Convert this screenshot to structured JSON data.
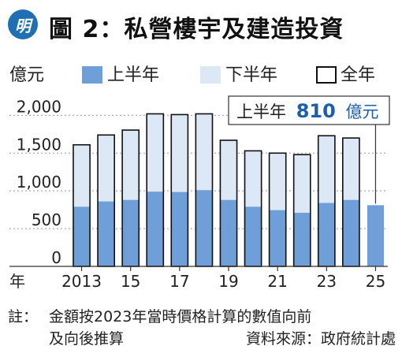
{
  "header": {
    "logo_text": "明",
    "title": "圖 2：私營樓宇及建造投資"
  },
  "colors": {
    "first_half": "#6f9fd8",
    "second_half": "#dde8f6",
    "bar_outline": "#111111",
    "axis": "#333333",
    "annotation_text": "#1a5fb0"
  },
  "chart_data": {
    "type": "bar",
    "stacked": true,
    "unit_label": "億元",
    "x_axis_label": "年",
    "categories": [
      "2013",
      "2014",
      "2015",
      "2016",
      "2017",
      "2018",
      "2019",
      "2020",
      "2021",
      "2022",
      "2023",
      "2024",
      "2025"
    ],
    "tick_labels": [
      {
        "category": "2013",
        "text": "2013"
      },
      {
        "category": "2015",
        "text": "15"
      },
      {
        "category": "2017",
        "text": "17"
      },
      {
        "category": "2019",
        "text": "19"
      },
      {
        "category": "2021",
        "text": "21"
      },
      {
        "category": "2023",
        "text": "23"
      },
      {
        "category": "2025",
        "text": "25"
      }
    ],
    "y_ticks": [
      "0",
      "500",
      "1,000",
      "1,500",
      "2,000"
    ],
    "ylim": [
      0,
      2150
    ],
    "legend": [
      "上半年",
      "下半年",
      "全年"
    ],
    "series": [
      {
        "name": "上半年",
        "values": [
          790,
          860,
          880,
          990,
          985,
          1010,
          880,
          790,
          745,
          710,
          840,
          880,
          810
        ]
      },
      {
        "name": "下半年",
        "values": [
          820,
          880,
          925,
          1030,
          1025,
          1010,
          790,
          740,
          755,
          770,
          890,
          820,
          null
        ]
      }
    ],
    "totals": [
      1610,
      1740,
      1805,
      2020,
      2010,
      2020,
      1670,
      1530,
      1500,
      1480,
      1730,
      1700,
      null
    ],
    "annotation": {
      "prefix": "上半年",
      "value": "810",
      "unit": "億元"
    }
  },
  "notes": {
    "label": "註：",
    "line1": "金額按2023年當時價格計算的數值向前",
    "line2_left": "及向後推算",
    "line2_right": "資料來源：政府統計處"
  }
}
